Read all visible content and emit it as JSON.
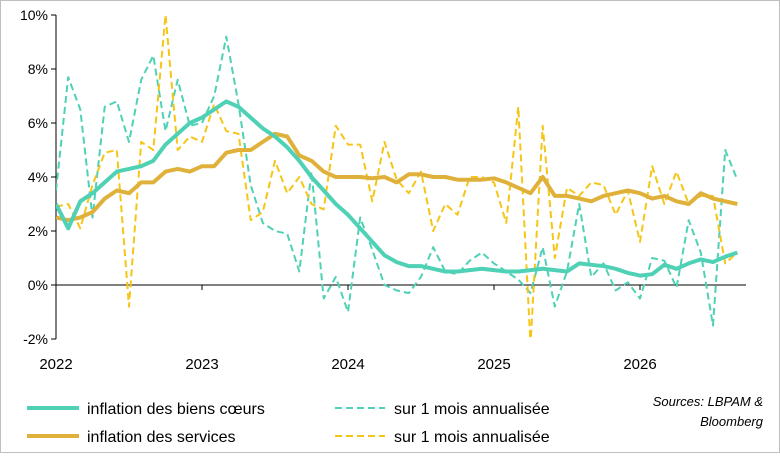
{
  "colors": {
    "goods": "#4fd1b5",
    "services": "#e0b13a",
    "goods_monthly": "#4fd1b5",
    "services_monthly": "#f5c518",
    "axis": "#000000",
    "background": "#ffffff"
  },
  "chart_data": {
    "type": "line",
    "title": "",
    "xlabel": "",
    "ylabel": "",
    "ylim": [
      -2,
      10
    ],
    "yticks": [
      "10%",
      "8%",
      "6%",
      "4%",
      "2%",
      "0%",
      "-2%"
    ],
    "ytick_values": [
      10,
      8,
      6,
      4,
      2,
      0,
      -2
    ],
    "xticks": [
      "2022",
      "2023",
      "2024",
      "2025",
      "2026"
    ],
    "x_start_year": 2022,
    "months": 57,
    "grid": false,
    "series": [
      {
        "name": "inflation des biens cœurs",
        "style": "solid",
        "color": "#4fd1b5",
        "values": [
          3.0,
          2.1,
          3.1,
          3.4,
          3.8,
          4.2,
          4.3,
          4.4,
          4.6,
          5.2,
          5.6,
          6.0,
          6.2,
          6.5,
          6.8,
          6.6,
          6.2,
          5.8,
          5.5,
          5.1,
          4.6,
          4.0,
          3.5,
          3.0,
          2.6,
          2.1,
          1.6,
          1.1,
          0.85,
          0.7,
          0.7,
          0.6,
          0.5,
          0.5,
          0.55,
          0.6,
          0.55,
          0.5,
          0.5,
          0.55,
          0.6,
          0.55,
          0.5,
          0.8,
          0.75,
          0.7,
          0.6,
          0.45,
          0.35,
          0.4,
          0.75,
          0.6,
          0.8,
          0.95,
          0.85,
          1.05,
          1.2
        ]
      },
      {
        "name": "sur 1 mois annualisée",
        "style": "dashed",
        "color": "#4fd1b5",
        "values": [
          3.5,
          7.7,
          6.5,
          2.5,
          6.6,
          6.8,
          5.3,
          7.6,
          8.5,
          5.7,
          7.6,
          5.9,
          6.0,
          7.0,
          9.2,
          6.7,
          3.7,
          2.3,
          2.0,
          1.9,
          0.5,
          4.2,
          -0.5,
          0.3,
          -1.0,
          2.5,
          1.3,
          0.0,
          -0.2,
          -0.3,
          0.3,
          1.4,
          0.5,
          0.4,
          0.9,
          1.2,
          0.8,
          0.5,
          0.2,
          -0.3,
          1.4,
          -0.8,
          0.5,
          3.0,
          0.3,
          0.8,
          -0.2,
          0.1,
          -0.5,
          1.0,
          0.9,
          -0.1,
          2.4,
          1.2,
          -1.5,
          5.0,
          3.9
        ]
      },
      {
        "name": "inflation des services",
        "style": "solid",
        "color": "#e0b13a",
        "values": [
          2.5,
          2.4,
          2.5,
          2.7,
          3.2,
          3.5,
          3.4,
          3.8,
          3.8,
          4.2,
          4.3,
          4.2,
          4.4,
          4.4,
          4.9,
          5.0,
          5.0,
          5.3,
          5.6,
          5.5,
          4.8,
          4.6,
          4.2,
          4.0,
          4.0,
          4.0,
          3.95,
          4.0,
          3.8,
          4.1,
          4.1,
          4.0,
          4.0,
          3.9,
          3.9,
          3.9,
          3.95,
          3.8,
          3.6,
          3.4,
          4.0,
          3.3,
          3.3,
          3.2,
          3.1,
          3.3,
          3.4,
          3.5,
          3.4,
          3.2,
          3.3,
          3.1,
          3.0,
          3.4,
          3.2,
          3.1,
          3.0
        ]
      },
      {
        "name": "sur 1 mois annualisée",
        "style": "dashed",
        "color": "#f5c518",
        "values": [
          2.9,
          3.0,
          2.1,
          3.7,
          4.9,
          5.0,
          -0.8,
          5.3,
          5.0,
          10.0,
          5.0,
          5.5,
          5.3,
          6.7,
          5.7,
          5.6,
          2.4,
          2.7,
          4.6,
          3.4,
          4.0,
          3.0,
          2.8,
          5.9,
          5.2,
          5.2,
          3.1,
          5.3,
          3.9,
          3.4,
          4.2,
          2.0,
          3.0,
          2.6,
          4.0,
          4.0,
          3.8,
          2.3,
          6.6,
          -2.2,
          5.9,
          1.0,
          3.6,
          3.3,
          3.8,
          3.7,
          2.6,
          3.5,
          1.6,
          4.4,
          3.0,
          4.2,
          3.0,
          3.3,
          3.3,
          0.8,
          1.2
        ]
      }
    ]
  },
  "legend": {
    "items": [
      {
        "label": "inflation des biens cœurs",
        "style": "solid",
        "color": "#4fd1b5"
      },
      {
        "label": "sur 1 mois annualisée",
        "style": "dashed",
        "color": "#4fd1b5"
      },
      {
        "label": "inflation des services",
        "style": "solid",
        "color": "#e0b13a"
      },
      {
        "label": "sur 1 mois annualisée",
        "style": "dashed",
        "color": "#f5c518"
      }
    ]
  },
  "source": {
    "line1": "Sources: LBPAM &",
    "line2": "Bloomberg"
  }
}
